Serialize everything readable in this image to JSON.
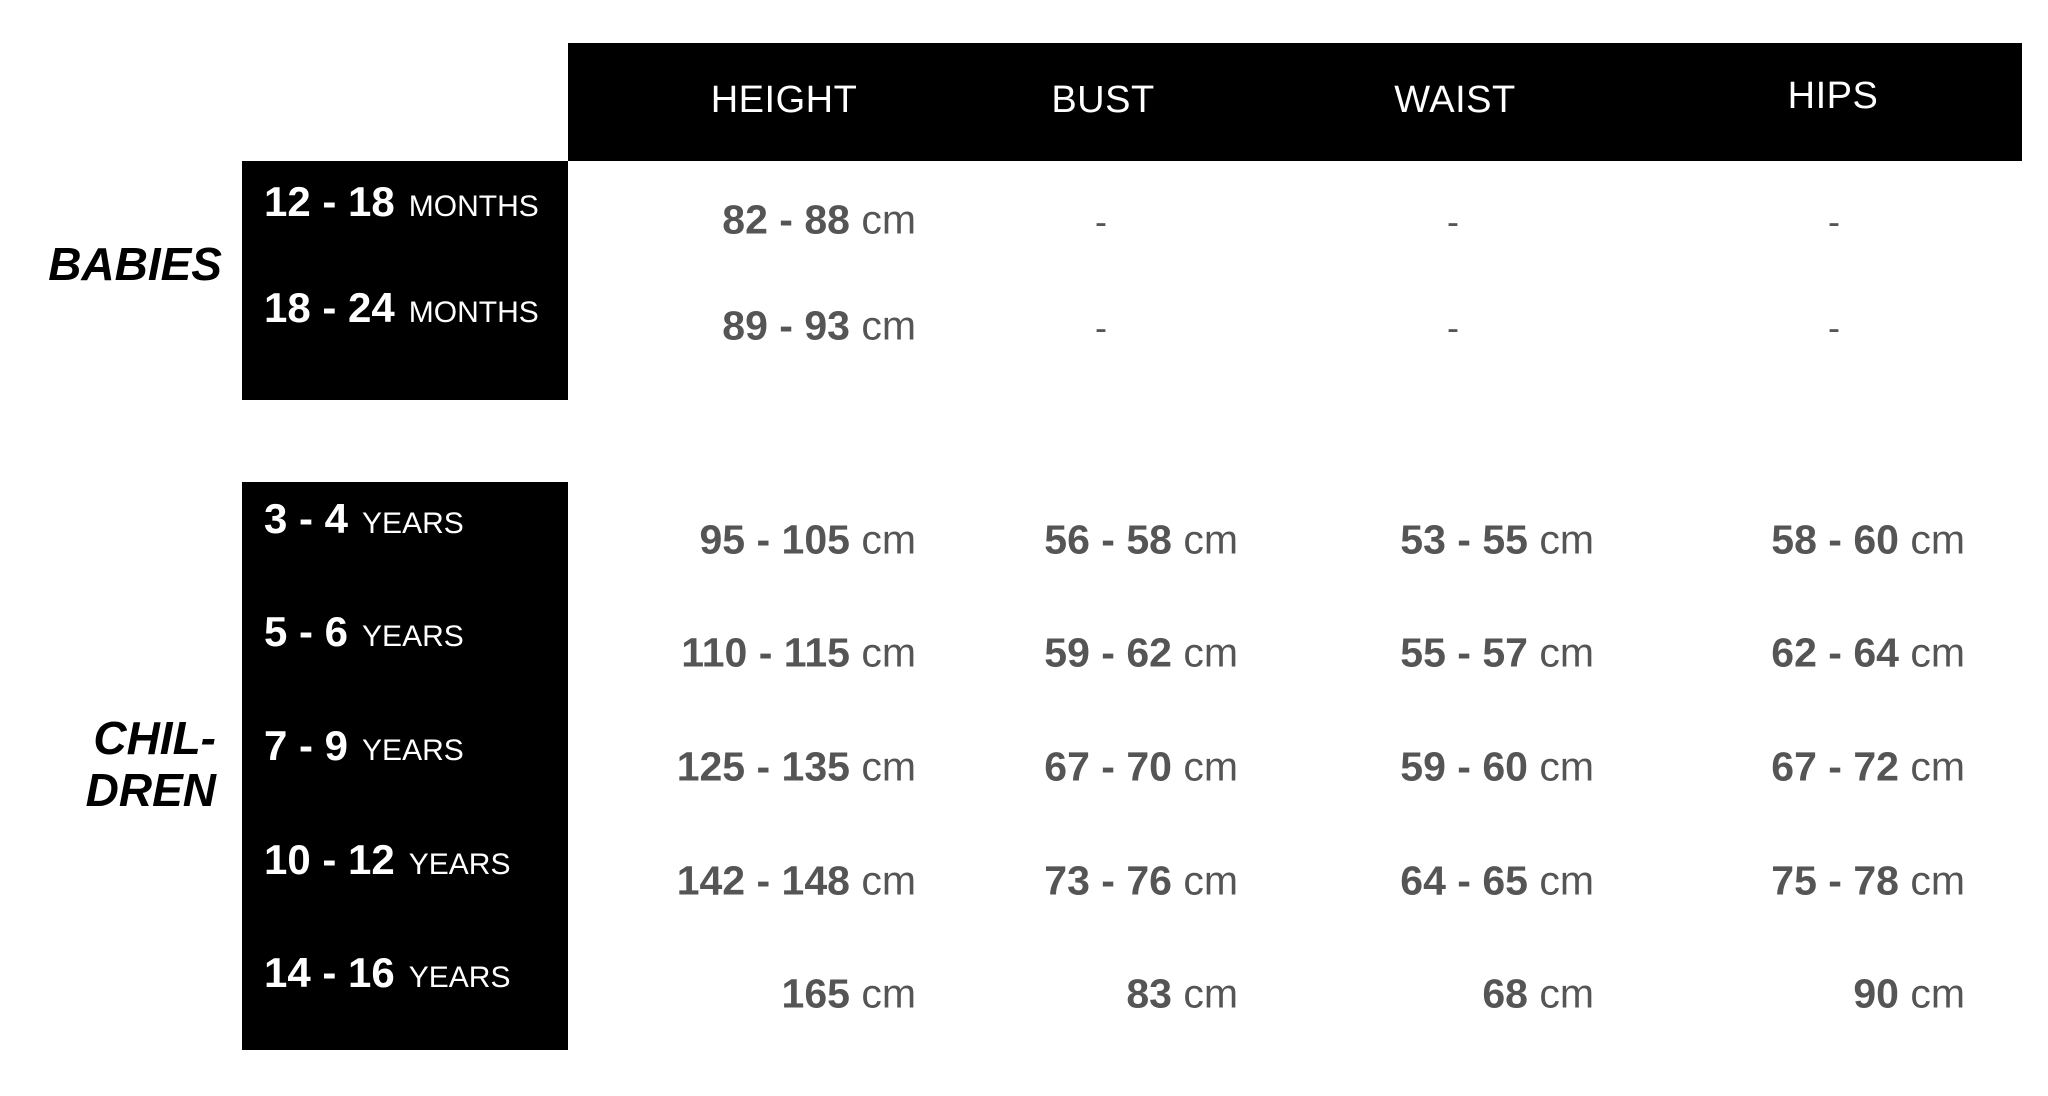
{
  "columns": [
    "HEIGHT",
    "BUST",
    "WAIST",
    "HIPS"
  ],
  "groups": [
    {
      "label": "BABIES",
      "rows": [
        {
          "range": "12 - 18",
          "unit": "MONTHS",
          "values": [
            "82 - 88",
            "-",
            "-",
            "-"
          ]
        },
        {
          "range": "18 - 24",
          "unit": "MONTHS",
          "values": [
            "89 - 93",
            "-",
            "-",
            "-"
          ]
        }
      ]
    },
    {
      "label_line1": "CHIL-",
      "label_line2": "DREN",
      "rows": [
        {
          "range": "3 - 4",
          "unit": "YEARS",
          "values": [
            "95 - 105",
            "56 - 58",
            "53 - 55",
            "58 - 60"
          ]
        },
        {
          "range": "5 - 6",
          "unit": "YEARS",
          "values": [
            "110 - 115",
            "59 - 62",
            "55 - 57",
            "62 - 64"
          ]
        },
        {
          "range": "7 - 9",
          "unit": "YEARS",
          "values": [
            "125 - 135",
            "67 - 70",
            "59 - 60",
            "67 - 72"
          ]
        },
        {
          "range": "10 - 12",
          "unit": "YEARS",
          "values": [
            "142 - 148",
            "73 - 76",
            "64 - 65",
            "75 - 78"
          ]
        },
        {
          "range": "14 - 16",
          "unit": "YEARS",
          "values": [
            "165",
            "83",
            "68",
            "90"
          ]
        }
      ]
    }
  ],
  "unit_cm": "cm"
}
